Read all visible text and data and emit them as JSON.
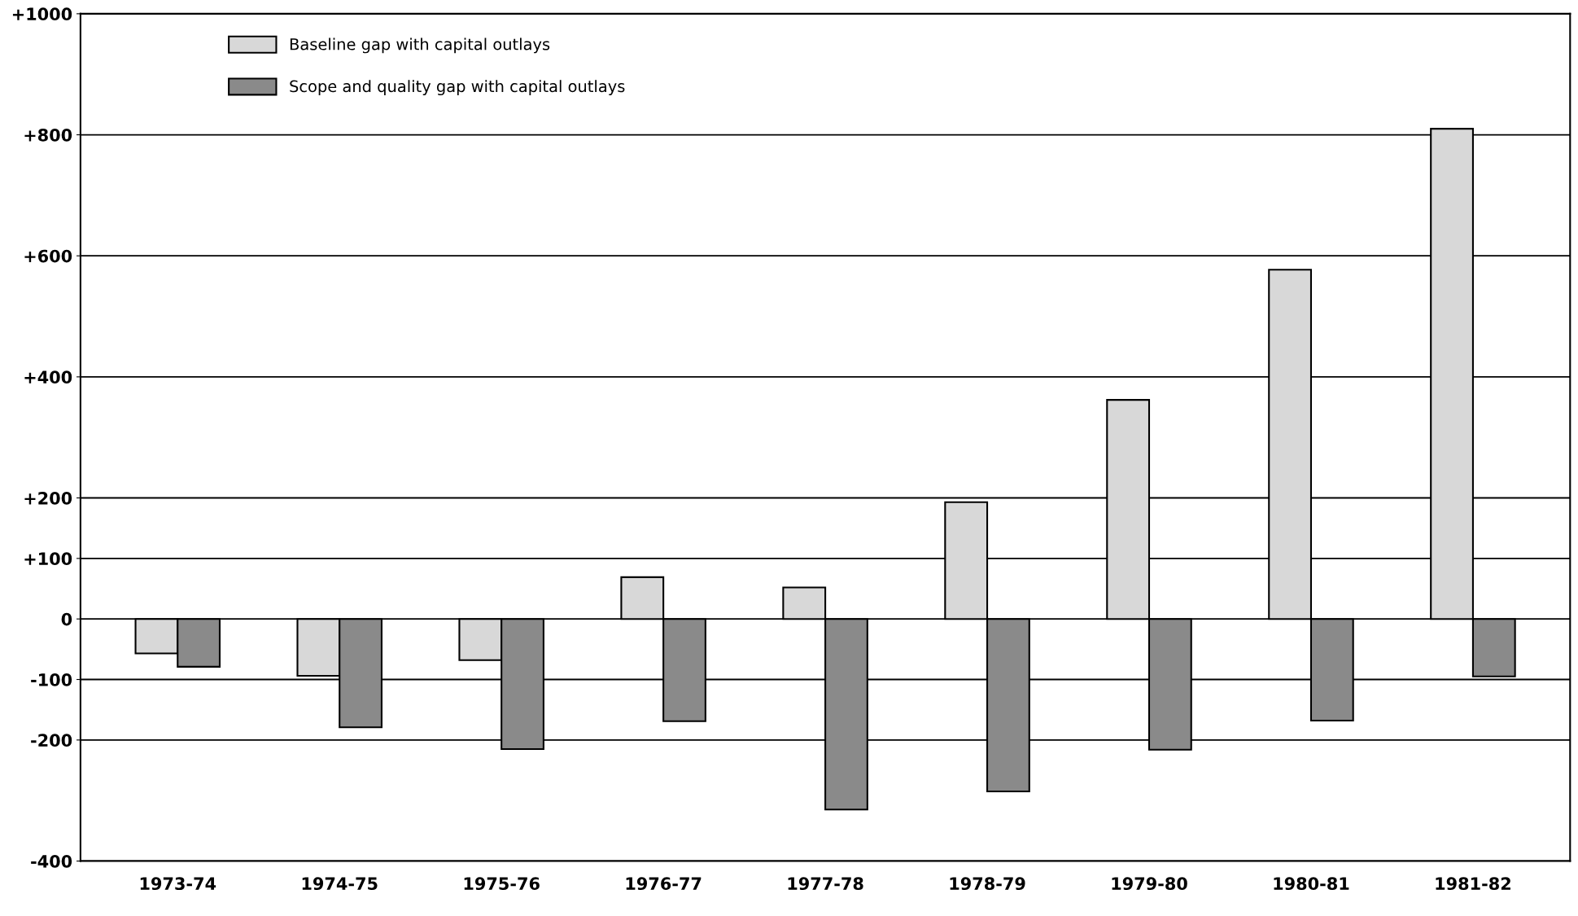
{
  "chart_data": {
    "type": "bar",
    "categories": [
      "1973-74",
      "1974-75",
      "1975-76",
      "1976-77",
      "1977-78",
      "1978-79",
      "1979-80",
      "1980-81",
      "1981-82"
    ],
    "series": [
      {
        "name": "Baseline gap with capital outlays",
        "color": "#d8d8d8",
        "values": [
          -57,
          -94,
          -68,
          69,
          52,
          193,
          362,
          577,
          810
        ]
      },
      {
        "name": "Scope and quality gap with capital outlays",
        "color": "#8a8a8a",
        "values": [
          -79,
          -179,
          -215,
          -169,
          -315,
          -285,
          -216,
          -168,
          -95
        ]
      }
    ],
    "ylim": [
      -400,
      1000
    ],
    "yticks": [
      -400,
      -200,
      -100,
      0,
      {
        "value": 100,
        "label": "+100"
      },
      {
        "value": 200,
        "label": "+200"
      },
      {
        "value": 400,
        "label": "+400"
      },
      {
        "value": 600,
        "label": "+600"
      },
      {
        "value": 800,
        "label": "+800"
      },
      {
        "value": 1000,
        "label": "+1000"
      }
    ],
    "grid": "y",
    "legend": "top left"
  }
}
